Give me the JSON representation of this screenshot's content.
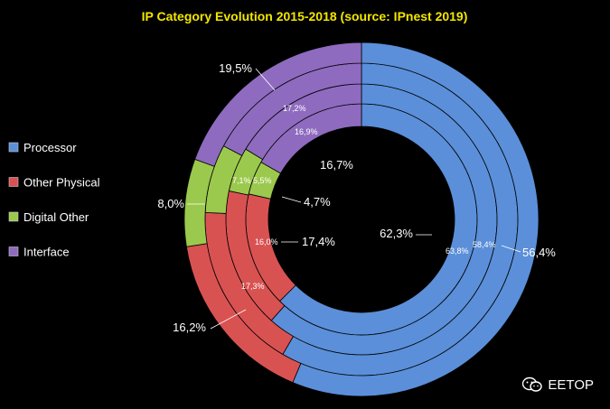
{
  "chart_data": {
    "type": "donut",
    "title": "IP Category Evolution 2015-2018 (source: IPnest 2019)",
    "categories": [
      "Processor",
      "Other Physical",
      "Digital Other",
      "Interface"
    ],
    "colors": {
      "Processor": "#5b8fd9",
      "Other Physical": "#d95252",
      "Digital Other": "#9bc94d",
      "Interface": "#8e6bbf"
    },
    "rings": [
      {
        "ring": "inner",
        "values": [
          62.3,
          16.0,
          4.7,
          16.7
        ],
        "labels": [
          "62,3%",
          "16,0%",
          "4,7%",
          "16,7%"
        ]
      },
      {
        "ring": "second",
        "values": [
          63.8,
          17.4,
          5.5,
          16.9
        ],
        "labels": [
          "63,8%",
          "17,4%",
          "5,5%",
          "16,9%"
        ]
      },
      {
        "ring": "third",
        "values": [
          58.4,
          17.3,
          7.1,
          17.2
        ],
        "labels": [
          "58,4%",
          "17,3%",
          "7,1%",
          "17,2%"
        ]
      },
      {
        "ring": "outer",
        "values": [
          56.4,
          16.2,
          8.0,
          19.5
        ],
        "labels": [
          "56,4%",
          "16,2%",
          "8,0%",
          "19,5%"
        ]
      }
    ],
    "legend": [
      "Processor",
      "Other Physical",
      "Digital Other",
      "Interface"
    ],
    "legend_position": "left"
  },
  "watermark": {
    "text": "EETOP"
  }
}
